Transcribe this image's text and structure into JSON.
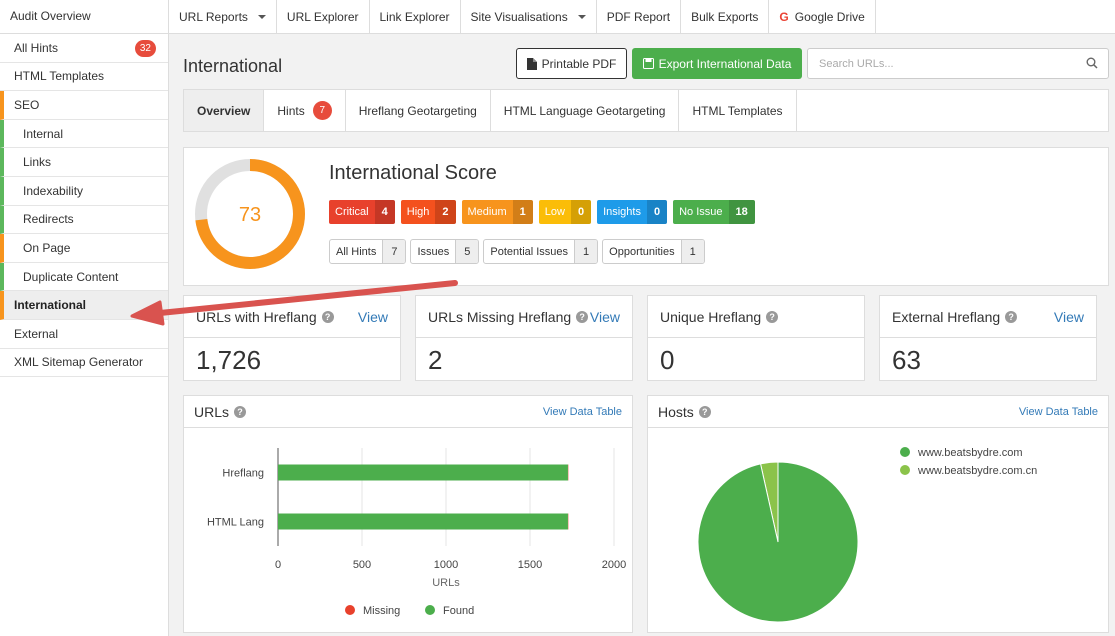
{
  "top": {
    "title": "Audit Overview",
    "nav": [
      {
        "label": "URL Reports",
        "dropdown": true
      },
      {
        "label": "URL Explorer",
        "dropdown": false
      },
      {
        "label": "Link Explorer",
        "dropdown": false
      },
      {
        "label": "Site Visualisations",
        "dropdown": true
      },
      {
        "label": "PDF Report",
        "dropdown": false
      },
      {
        "label": "Bulk Exports",
        "dropdown": false
      },
      {
        "label": "Google Drive",
        "dropdown": false,
        "icon": "google-icon"
      }
    ]
  },
  "sidebar": {
    "items": [
      {
        "label": "All Hints",
        "badge": "32"
      },
      {
        "label": "HTML Templates"
      },
      {
        "label": "SEO"
      },
      {
        "label": "Internal"
      },
      {
        "label": "Links"
      },
      {
        "label": "Indexability"
      },
      {
        "label": "Redirects"
      },
      {
        "label": "On Page"
      },
      {
        "label": "Duplicate Content"
      },
      {
        "label": "International"
      },
      {
        "label": "External"
      },
      {
        "label": "XML Sitemap Generator"
      }
    ]
  },
  "main": {
    "title": "International",
    "pdf_button": "Printable PDF",
    "export_button": "Export International Data",
    "search_placeholder": "Search URLs...",
    "tabs": [
      {
        "label": "Overview"
      },
      {
        "label": "Hints",
        "badge": "7"
      },
      {
        "label": "Hreflang Geotargeting"
      },
      {
        "label": "HTML Language Geotargeting"
      },
      {
        "label": "HTML Templates"
      }
    ]
  },
  "score": {
    "title": "International Score",
    "value": "73",
    "percent": 73,
    "severities": [
      {
        "label": "Critical",
        "count": "4",
        "color": "#e8412c"
      },
      {
        "label": "High",
        "count": "2",
        "color": "#f4511e"
      },
      {
        "label": "Medium",
        "count": "1",
        "color": "#f7941d"
      },
      {
        "label": "Low",
        "count": "0",
        "color": "#fbbd08"
      },
      {
        "label": "Insights",
        "count": "0",
        "color": "#1e9be9"
      },
      {
        "label": "No Issue",
        "count": "18",
        "color": "#4cae4c"
      }
    ],
    "types": [
      {
        "label": "All Hints",
        "count": "7"
      },
      {
        "label": "Issues",
        "count": "5"
      },
      {
        "label": "Potential Issues",
        "count": "1"
      },
      {
        "label": "Opportunities",
        "count": "1"
      }
    ]
  },
  "stats": [
    {
      "label": "URLs with Hreflang",
      "value": "1,726",
      "link": "View"
    },
    {
      "label": "URLs Missing Hreflang",
      "value": "2",
      "link": "View"
    },
    {
      "label": "Unique Hreflang",
      "value": "0",
      "link": ""
    },
    {
      "label": "External Hreflang",
      "value": "63",
      "link": "View"
    }
  ],
  "urls_panel": {
    "title": "URLs",
    "link": "View Data Table"
  },
  "hosts_panel": {
    "title": "Hosts",
    "link": "View Data Table"
  },
  "chart_data": [
    {
      "type": "bar",
      "orientation": "horizontal",
      "stacked": true,
      "title": "URLs",
      "categories": [
        "Hreflang",
        "HTML Lang"
      ],
      "series": [
        {
          "name": "Missing",
          "values": [
            2,
            2
          ],
          "color": "#e8412c"
        },
        {
          "name": "Found",
          "values": [
            1726,
            1726
          ],
          "color": "#4cae4c"
        }
      ],
      "xlabel": "URLs",
      "xticks": [
        "0",
        "500",
        "1000",
        "1500",
        "2000"
      ],
      "xlim": [
        0,
        2000
      ],
      "legend": "bottom"
    },
    {
      "type": "pie",
      "title": "Hosts",
      "labels": [
        "www.beatsbydre.com",
        "www.beatsbydre.com.cn"
      ],
      "values": [
        96.5,
        3.5
      ],
      "colors": [
        "#4cae4c",
        "#8bc34a"
      ],
      "legend": "top-right"
    }
  ]
}
